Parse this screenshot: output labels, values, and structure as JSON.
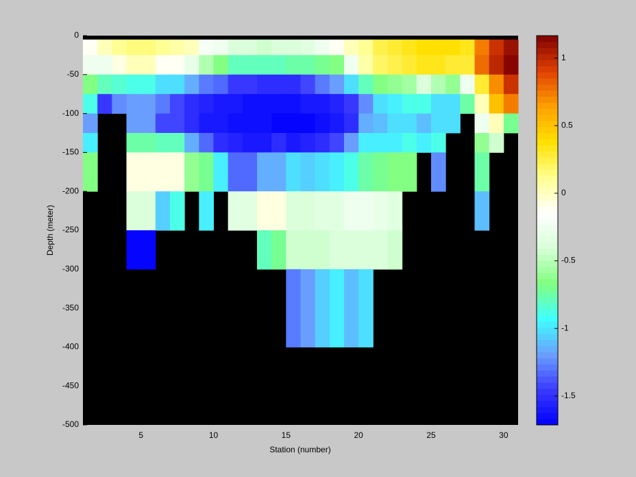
{
  "chart_data": {
    "type": "heatmap",
    "xlabel": "Station (number)",
    "ylabel": "Depth (meter)",
    "x": [
      1,
      2,
      3,
      4,
      5,
      6,
      7,
      8,
      9,
      10,
      11,
      12,
      13,
      14,
      15,
      16,
      17,
      18,
      19,
      20,
      21,
      22,
      23,
      24,
      25,
      26,
      27,
      28,
      29,
      30,
      31
    ],
    "y": [
      -5,
      -25,
      -50,
      -75,
      -100,
      -125,
      -150,
      -200,
      -250,
      -300,
      -400
    ],
    "values": [
      [
        -0.1,
        0,
        0.1,
        0.15,
        0.15,
        0.1,
        0.05,
        0,
        -0.2,
        -0.25,
        -0.4,
        -0.4,
        -0.45,
        -0.4,
        -0.4,
        -0.35,
        -0.25,
        -0.1,
        0,
        0.1,
        0.25,
        0.3,
        0.35,
        0.4,
        0.4,
        0.4,
        0.35,
        0.75,
        0.95,
        1.1
      ],
      [
        -0.25,
        -0.25,
        -0.05,
        0,
        0,
        -0.1,
        -0.1,
        -0.3,
        -0.5,
        -0.65,
        -0.8,
        -0.8,
        -0.8,
        -0.8,
        -0.75,
        -0.75,
        -0.7,
        -0.65,
        -0.25,
        0.05,
        0.2,
        0.25,
        0.3,
        0.35,
        0.35,
        0.3,
        0.3,
        0.8,
        1,
        1.15
      ],
      [
        -0.65,
        -0.8,
        -0.85,
        -0.9,
        -0.9,
        -1,
        -1,
        -1.15,
        -1.3,
        -1.35,
        -1.45,
        -1.45,
        -1.5,
        -1.5,
        -1.5,
        -1.4,
        -1.3,
        -1.2,
        -1,
        -0.8,
        -0.65,
        -0.6,
        -0.55,
        -0.4,
        -0.5,
        -0.6,
        -0.25,
        0.3,
        0.7,
        0.95
      ],
      [
        -0.9,
        -1.45,
        -1.25,
        -1.2,
        -1.2,
        -1.3,
        -1.4,
        -1.5,
        -1.55,
        -1.6,
        -1.6,
        -1.65,
        -1.65,
        -1.65,
        -1.65,
        -1.6,
        -1.6,
        -1.55,
        -1.45,
        -1.25,
        -1,
        -0.95,
        -0.9,
        -0.9,
        -1,
        -1,
        -0.75,
        0,
        0.5,
        0.75
      ],
      [
        -1.2,
        null,
        null,
        -1.2,
        -1.2,
        -1.4,
        -1.4,
        -1.5,
        -1.6,
        -1.6,
        -1.65,
        -1.65,
        -1.65,
        -1.7,
        -1.7,
        -1.7,
        -1.65,
        -1.6,
        -1.5,
        -1.15,
        -1.1,
        -1,
        -1,
        -1.1,
        -1,
        -1,
        null,
        -0.25,
        0,
        -0.7
      ],
      [
        -0.95,
        null,
        null,
        -0.75,
        -0.75,
        -0.8,
        -0.8,
        -1.15,
        -1.35,
        -1.5,
        -1.55,
        -1.6,
        -1.6,
        -1.5,
        -1.6,
        -1.55,
        -1.5,
        -1.4,
        -1.2,
        -0.95,
        -0.95,
        -0.95,
        -0.9,
        -0.95,
        -0.9,
        null,
        null,
        -0.6,
        -0.45,
        null
      ],
      [
        -0.65,
        null,
        null,
        -0.05,
        -0.05,
        -0.05,
        -0.05,
        -0.6,
        -0.7,
        -0.95,
        -1.35,
        -1.35,
        -1.15,
        -1.15,
        -1,
        -1.05,
        -1,
        -0.95,
        -0.9,
        -0.75,
        -0.7,
        -0.65,
        -0.65,
        null,
        -1.25,
        null,
        null,
        -0.75,
        null,
        null
      ],
      [
        null,
        null,
        null,
        -0.4,
        -0.4,
        -1.05,
        -0.9,
        null,
        -0.95,
        null,
        -0.35,
        -0.35,
        -0.05,
        -0.05,
        -0.4,
        -0.4,
        -0.35,
        -0.35,
        -0.25,
        -0.25,
        -0.3,
        -0.35,
        null,
        null,
        null,
        null,
        null,
        -1.1,
        null,
        null
      ],
      [
        null,
        null,
        null,
        -1.7,
        -1.7,
        null,
        null,
        null,
        null,
        null,
        null,
        null,
        -0.8,
        -0.7,
        -0.45,
        -0.45,
        -0.45,
        -0.4,
        -0.4,
        -0.4,
        -0.4,
        -0.45,
        null,
        null,
        null,
        null,
        null,
        null,
        null,
        null
      ],
      [
        null,
        null,
        null,
        null,
        null,
        null,
        null,
        null,
        null,
        null,
        null,
        null,
        null,
        null,
        -1.3,
        -1.2,
        -1.05,
        -0.95,
        -1.1,
        -1,
        null,
        null,
        null,
        null,
        null,
        null,
        null,
        null,
        null,
        null
      ]
    ],
    "xlim": [
      1,
      31
    ],
    "xticks": [
      5,
      10,
      15,
      20,
      25,
      30
    ],
    "ylim": [
      -500,
      0
    ],
    "yticks": [
      0,
      -50,
      -100,
      -150,
      -200,
      -250,
      -300,
      -350,
      -400,
      -450,
      -500
    ],
    "clim": [
      -1.714,
      1.166
    ],
    "cticks": [
      -1.5,
      -1,
      -0.5,
      0,
      0.5,
      1
    ],
    "colormap": [
      "#0000ff",
      "#3a3aff",
      "#6aa0ff",
      "#40ffff",
      "#80ff80",
      "#d8ffd8",
      "#ffffff",
      "#ffff90",
      "#ffe000",
      "#ffa000",
      "#e04000",
      "#800000"
    ],
    "background": "#000000"
  }
}
